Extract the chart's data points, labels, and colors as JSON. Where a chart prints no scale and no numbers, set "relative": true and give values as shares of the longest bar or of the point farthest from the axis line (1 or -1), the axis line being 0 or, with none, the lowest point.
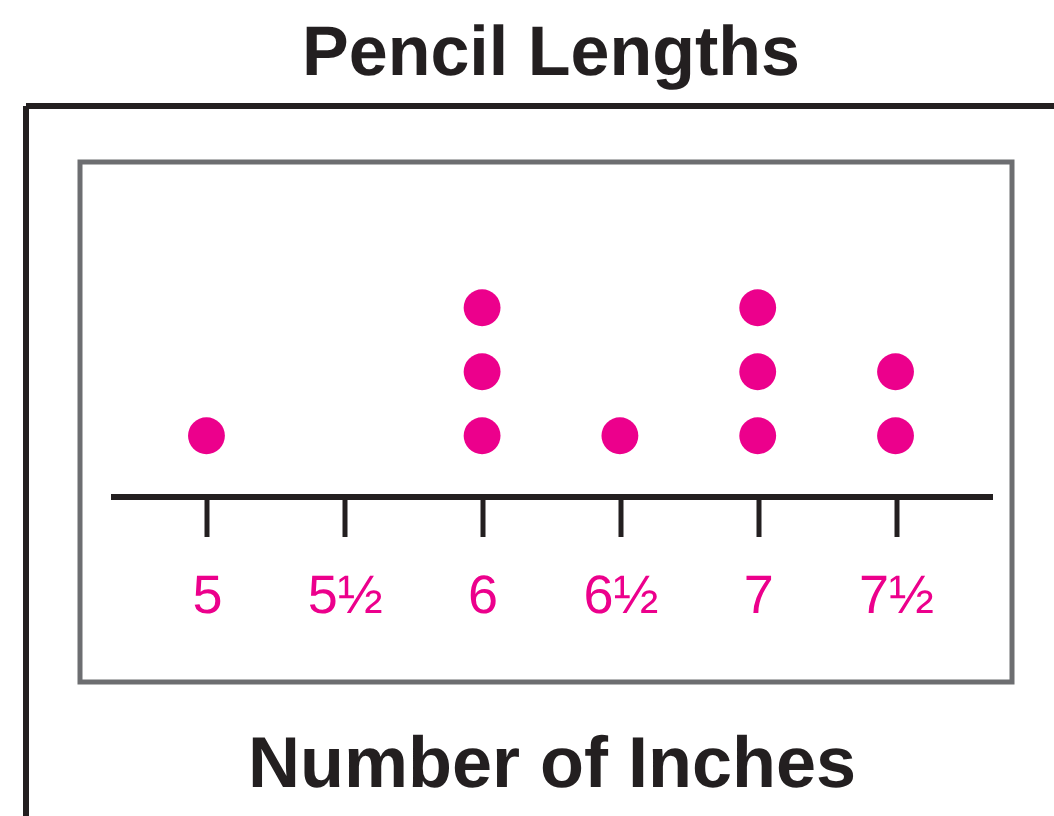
{
  "chart_data": {
    "type": "scatter",
    "title": "Pencil Lengths",
    "xlabel": "Number of Inches",
    "x": [
      5,
      6,
      6,
      6,
      6.5,
      7,
      7,
      7,
      7.5,
      7.5
    ],
    "values": [
      0.32,
      0.32,
      0.66,
      1,
      0.32,
      0.32,
      0.66,
      1,
      0.32,
      0.66
    ],
    "relative": true,
    "color": "#ec008c",
    "marker": "circle",
    "xlim": [
      4.65,
      7.85
    ],
    "xticks": [
      5,
      {
        "value": 5.5,
        "label": "5½"
      },
      6,
      {
        "value": 6.5,
        "label": "6½"
      },
      7,
      {
        "value": 7.5,
        "label": "7½"
      }
    ],
    "tick_labels": "x"
  }
}
